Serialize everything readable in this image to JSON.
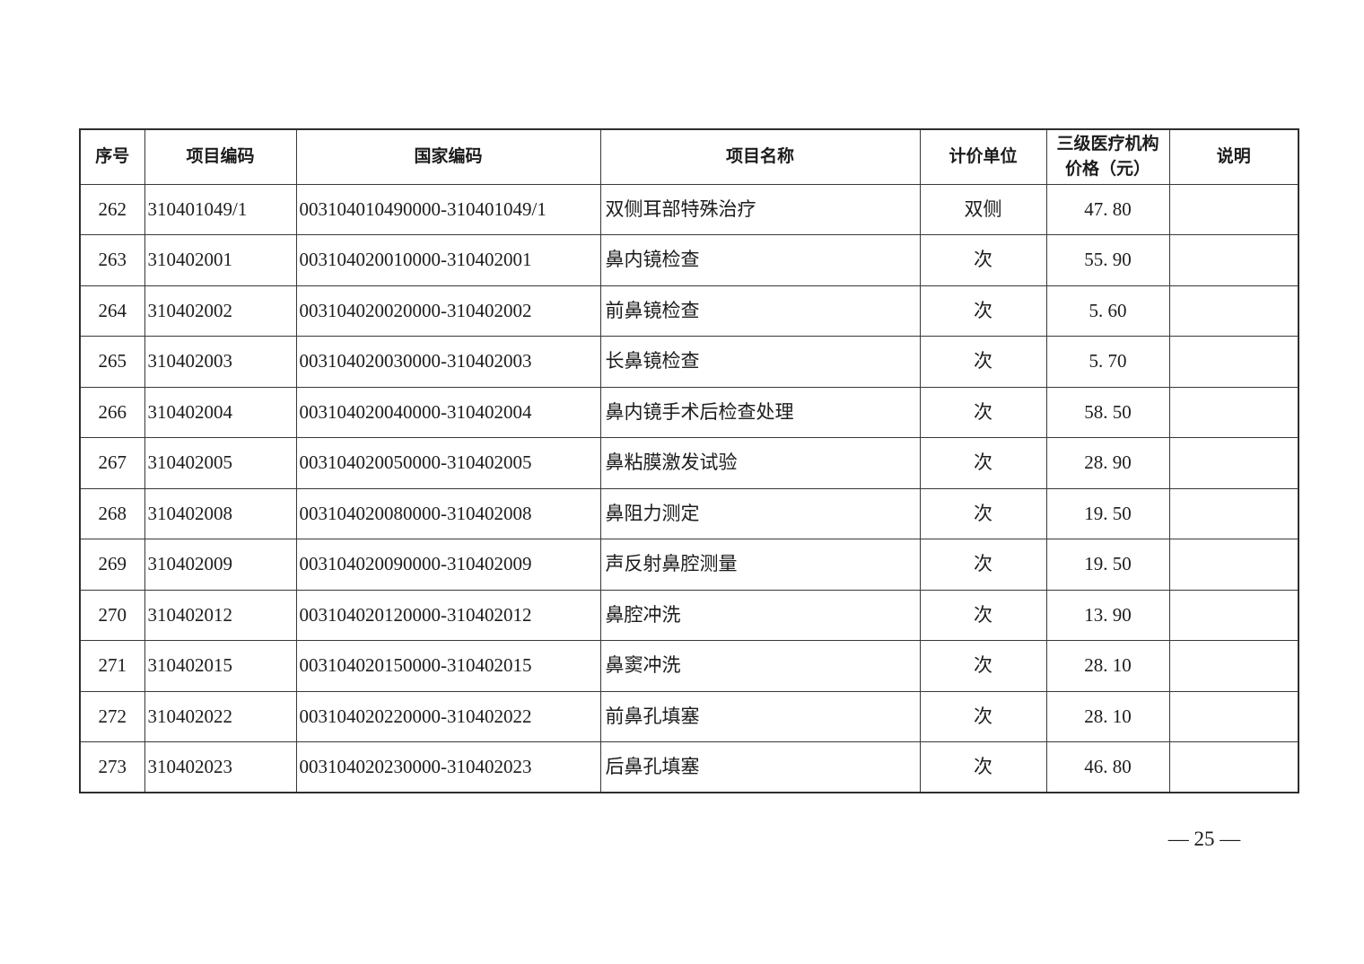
{
  "table": {
    "headers": [
      "序号",
      "项目编码",
      "国家编码",
      "项目名称",
      "计价单位",
      "三级医疗机构价格（元）",
      "说明"
    ],
    "rows": [
      {
        "seq": "262",
        "code": "310401049/1",
        "national_code": "003104010490000-310401049/1",
        "name": "双侧耳部特殊治疗",
        "unit": "双侧",
        "price": "47. 80",
        "note": ""
      },
      {
        "seq": "263",
        "code": "310402001",
        "national_code": "003104020010000-310402001",
        "name": "鼻内镜检查",
        "unit": "次",
        "price": "55. 90",
        "note": ""
      },
      {
        "seq": "264",
        "code": "310402002",
        "national_code": "003104020020000-310402002",
        "name": "前鼻镜检查",
        "unit": "次",
        "price": "5. 60",
        "note": ""
      },
      {
        "seq": "265",
        "code": "310402003",
        "national_code": "003104020030000-310402003",
        "name": "长鼻镜检查",
        "unit": "次",
        "price": "5. 70",
        "note": ""
      },
      {
        "seq": "266",
        "code": "310402004",
        "national_code": "003104020040000-310402004",
        "name": "鼻内镜手术后检查处理",
        "unit": "次",
        "price": "58. 50",
        "note": ""
      },
      {
        "seq": "267",
        "code": "310402005",
        "national_code": "003104020050000-310402005",
        "name": "鼻粘膜激发试验",
        "unit": "次",
        "price": "28. 90",
        "note": ""
      },
      {
        "seq": "268",
        "code": "310402008",
        "national_code": "003104020080000-310402008",
        "name": "鼻阻力测定",
        "unit": "次",
        "price": "19. 50",
        "note": ""
      },
      {
        "seq": "269",
        "code": "310402009",
        "national_code": "003104020090000-310402009",
        "name": "声反射鼻腔测量",
        "unit": "次",
        "price": "19. 50",
        "note": ""
      },
      {
        "seq": "270",
        "code": "310402012",
        "national_code": "003104020120000-310402012",
        "name": "鼻腔冲洗",
        "unit": "次",
        "price": "13. 90",
        "note": ""
      },
      {
        "seq": "271",
        "code": "310402015",
        "national_code": "003104020150000-310402015",
        "name": "鼻窦冲洗",
        "unit": "次",
        "price": "28. 10",
        "note": ""
      },
      {
        "seq": "272",
        "code": "310402022",
        "national_code": "003104020220000-310402022",
        "name": "前鼻孔填塞",
        "unit": "次",
        "price": "28. 10",
        "note": ""
      },
      {
        "seq": "273",
        "code": "310402023",
        "national_code": "003104020230000-310402023",
        "name": "后鼻孔填塞",
        "unit": "次",
        "price": "46. 80",
        "note": ""
      }
    ]
  },
  "footer": {
    "page_number": "— 25 —"
  }
}
